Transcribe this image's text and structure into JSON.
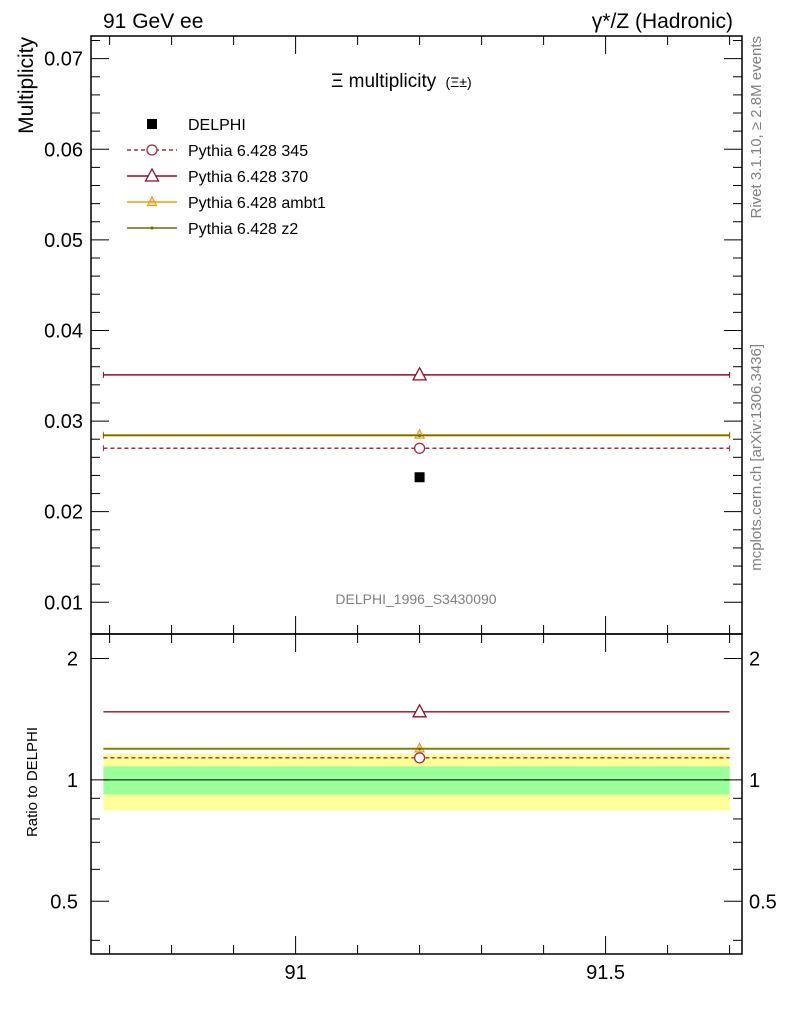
{
  "header": {
    "left": "91 GeV ee",
    "right": "γ*/Z (Hadronic)"
  },
  "side_labels": {
    "rivet": "Rivet 3.1.10, ≥ 2.8M events",
    "source": "mcplots.cern.ch [arXiv:1306.3436]"
  },
  "chart_data": {
    "type": "scatter",
    "title": "Ξ multiplicity",
    "title_suffix": "(Ξ±)",
    "watermark": "DELPHI_1996_S3430090",
    "xlabel": "",
    "ylabel": "Multiplicity",
    "xlim": [
      90.67,
      91.72
    ],
    "ylim": [
      0.0065,
      0.0725
    ],
    "x_ticks": [
      "91",
      "91.5"
    ],
    "x_tick_values": [
      91,
      91.5
    ],
    "y_ticks": [
      "0.01",
      "0.02",
      "0.03",
      "0.04",
      "0.05",
      "0.06",
      "0.07"
    ],
    "y_tick_values": [
      0.01,
      0.02,
      0.03,
      0.04,
      0.05,
      0.06,
      0.07
    ],
    "grid": false,
    "legend_position": "top-left",
    "data": {
      "name": "DELPHI",
      "x": 91.2,
      "y": 0.0238,
      "color": "#000000"
    },
    "series": [
      {
        "name": "Pythia 6.428 345",
        "x": 91.2,
        "y": 0.027,
        "xrange": [
          90.69,
          91.7
        ],
        "color": "#a52a3a",
        "dash": true,
        "marker": "circle"
      },
      {
        "name": "Pythia 6.428 370",
        "x": 91.2,
        "y": 0.0351,
        "xrange": [
          90.69,
          91.7
        ],
        "color": "#8b0f24",
        "dash": false,
        "marker": "triangle"
      },
      {
        "name": "Pythia 6.428 ambt1",
        "x": 91.2,
        "y": 0.0285,
        "xrange": [
          90.69,
          91.7
        ],
        "color": "#e5a013",
        "dash": false,
        "marker": "triangle-small"
      },
      {
        "name": "Pythia 6.428 z2",
        "x": 91.2,
        "y": 0.0284,
        "xrange": [
          90.69,
          91.7
        ],
        "color": "#6b6b00",
        "dash": false,
        "marker": "dot"
      }
    ],
    "ratio": {
      "ylabel": "Ratio to DELPHI",
      "ylim": [
        0.37,
        2.3
      ],
      "y_ticks": [
        "0.5",
        "1",
        "2"
      ],
      "y_tick_values": [
        0.5,
        1,
        2
      ],
      "band_inner": [
        0.92,
        1.08
      ],
      "band_outer": [
        0.84,
        1.16
      ],
      "values": [
        1.134,
        1.475,
        1.197,
        1.193
      ]
    }
  }
}
